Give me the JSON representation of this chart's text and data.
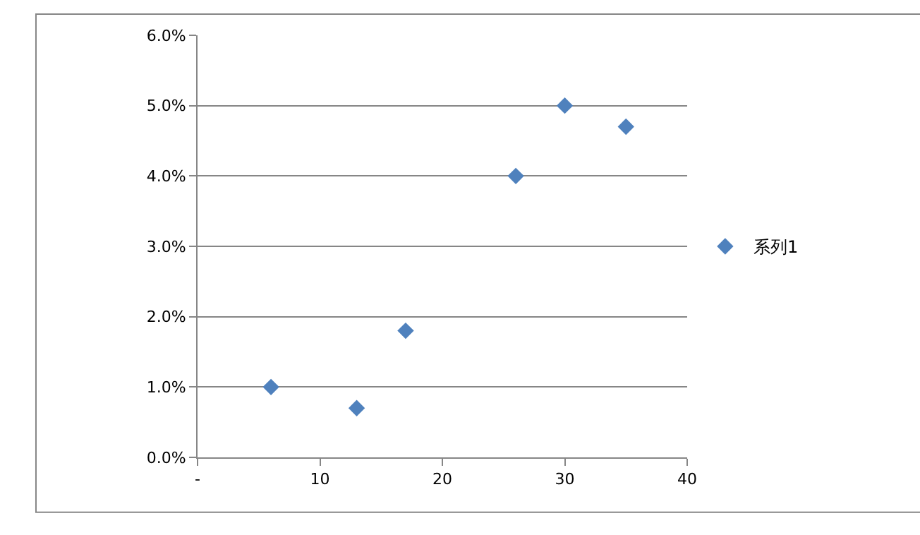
{
  "chart_data": {
    "type": "scatter",
    "x": [
      6,
      13,
      17,
      26,
      30,
      35
    ],
    "series": [
      {
        "name": "系列1",
        "color": "#4f81bd",
        "values": [
          1.0,
          0.7,
          1.8,
          4.0,
          5.0,
          4.7
        ]
      }
    ],
    "xlim": [
      0,
      40
    ],
    "xticks": [
      {
        "value": 0,
        "label": "-"
      },
      10,
      20,
      30,
      40
    ],
    "ylim": [
      0,
      6
    ],
    "yticks": [
      {
        "value": 0,
        "label": "0.0%"
      },
      {
        "value": 1,
        "label": "1.0%"
      },
      {
        "value": 2,
        "label": "2.0%"
      },
      {
        "value": 3,
        "label": "3.0%"
      },
      {
        "value": 4,
        "label": "4.0%"
      },
      {
        "value": 5,
        "label": "5.0%"
      },
      {
        "value": 6,
        "label": "6.0%"
      }
    ],
    "grid": "y",
    "legend": "right",
    "marker": "diamond"
  }
}
